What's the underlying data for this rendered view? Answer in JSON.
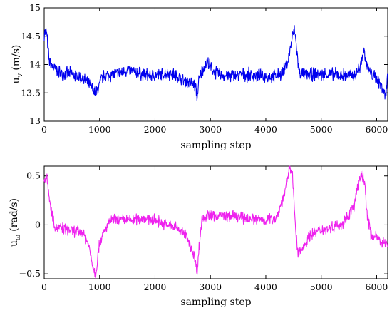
{
  "chart_data": [
    {
      "type": "line",
      "xlabel": "sampling step",
      "ylabel_main": "u",
      "ylabel_sub": "v",
      "ylabel_unit": "(m/s)",
      "xlim": [
        0,
        6200
      ],
      "ylim": [
        13,
        15
      ],
      "xticks": [
        0,
        1000,
        2000,
        3000,
        4000,
        5000,
        6000
      ],
      "yticks": [
        13,
        13.5,
        14,
        14.5,
        15
      ],
      "ytick_labels": [
        "13",
        "13.5",
        "14",
        "14.5",
        "15"
      ],
      "series": [
        {
          "color": "#0000ee",
          "noise": 0.14,
          "points": [
            [
              0,
              14.55
            ],
            [
              40,
              14.6
            ],
            [
              90,
              14.05
            ],
            [
              150,
              13.95
            ],
            [
              300,
              13.85
            ],
            [
              500,
              13.83
            ],
            [
              700,
              13.75
            ],
            [
              850,
              13.6
            ],
            [
              930,
              13.48
            ],
            [
              980,
              13.6
            ],
            [
              1050,
              13.78
            ],
            [
              1200,
              13.82
            ],
            [
              1400,
              13.85
            ],
            [
              1500,
              13.9
            ],
            [
              1700,
              13.85
            ],
            [
              1900,
              13.8
            ],
            [
              2100,
              13.82
            ],
            [
              2300,
              13.85
            ],
            [
              2500,
              13.72
            ],
            [
              2650,
              13.68
            ],
            [
              2740,
              13.6
            ],
            [
              2760,
              13.4
            ],
            [
              2790,
              13.7
            ],
            [
              2850,
              13.9
            ],
            [
              2950,
              14.05
            ],
            [
              3000,
              13.95
            ],
            [
              3100,
              13.85
            ],
            [
              3300,
              13.8
            ],
            [
              3600,
              13.82
            ],
            [
              3900,
              13.8
            ],
            [
              4150,
              13.78
            ],
            [
              4300,
              13.85
            ],
            [
              4400,
              14.05
            ],
            [
              4480,
              14.5
            ],
            [
              4520,
              14.6
            ],
            [
              4560,
              14.25
            ],
            [
              4600,
              13.85
            ],
            [
              4700,
              13.82
            ],
            [
              5000,
              13.83
            ],
            [
              5300,
              13.82
            ],
            [
              5600,
              13.8
            ],
            [
              5700,
              13.95
            ],
            [
              5770,
              14.25
            ],
            [
              5810,
              14.05
            ],
            [
              5880,
              13.85
            ],
            [
              6000,
              13.75
            ],
            [
              6100,
              13.6
            ],
            [
              6160,
              13.45
            ],
            [
              6200,
              13.8
            ]
          ]
        }
      ]
    },
    {
      "type": "line",
      "xlabel": "sampling step",
      "ylabel_main": "u",
      "ylabel_sub": "ω",
      "ylabel_unit": "(rad/s)",
      "xlim": [
        0,
        6200
      ],
      "ylim": [
        -0.55,
        0.6
      ],
      "xticks": [
        0,
        1000,
        2000,
        3000,
        4000,
        5000,
        6000
      ],
      "yticks": [
        -0.5,
        0,
        0.5
      ],
      "ytick_labels": [
        "−0.5",
        "0",
        "0.5"
      ],
      "series": [
        {
          "color": "#ee22ee",
          "noise": 0.07,
          "points": [
            [
              0,
              0.47
            ],
            [
              50,
              0.48
            ],
            [
              110,
              0.2
            ],
            [
              200,
              -0.02
            ],
            [
              400,
              -0.05
            ],
            [
              700,
              -0.08
            ],
            [
              800,
              -0.2
            ],
            [
              880,
              -0.42
            ],
            [
              930,
              -0.52
            ],
            [
              990,
              -0.2
            ],
            [
              1100,
              -0.05
            ],
            [
              1200,
              0.05
            ],
            [
              1400,
              0.05
            ],
            [
              1600,
              0.05
            ],
            [
              1800,
              0.07
            ],
            [
              2000,
              0.05
            ],
            [
              2200,
              0.0
            ],
            [
              2400,
              -0.03
            ],
            [
              2550,
              -0.1
            ],
            [
              2700,
              -0.3
            ],
            [
              2760,
              -0.48
            ],
            [
              2800,
              -0.2
            ],
            [
              2850,
              0.07
            ],
            [
              3000,
              0.1
            ],
            [
              3500,
              0.08
            ],
            [
              3800,
              0.06
            ],
            [
              4000,
              0.05
            ],
            [
              4200,
              0.08
            ],
            [
              4350,
              0.35
            ],
            [
              4430,
              0.58
            ],
            [
              4480,
              0.55
            ],
            [
              4530,
              0.0
            ],
            [
              4580,
              -0.3
            ],
            [
              4650,
              -0.25
            ],
            [
              4800,
              -0.1
            ],
            [
              5000,
              -0.05
            ],
            [
              5200,
              -0.02
            ],
            [
              5400,
              0.02
            ],
            [
              5600,
              0.2
            ],
            [
              5680,
              0.45
            ],
            [
              5730,
              0.52
            ],
            [
              5780,
              0.45
            ],
            [
              5830,
              0.1
            ],
            [
              5900,
              -0.1
            ],
            [
              6050,
              -0.15
            ],
            [
              6200,
              -0.2
            ]
          ]
        }
      ]
    }
  ]
}
